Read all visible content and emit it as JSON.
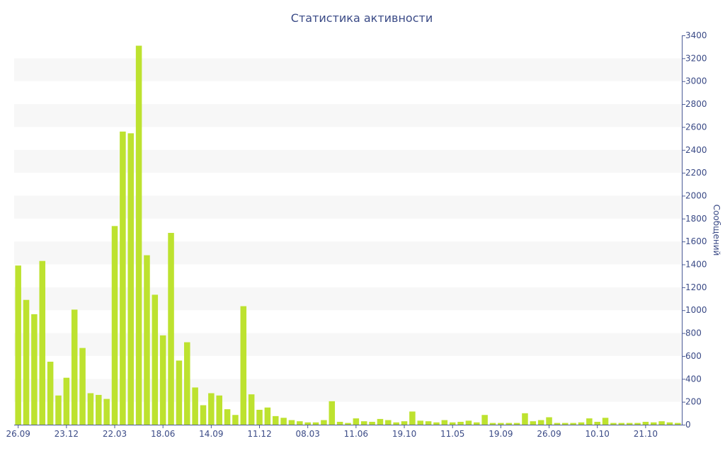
{
  "chart_data": {
    "type": "bar",
    "title": "Статистика активности",
    "ylabel": "Сообщений",
    "xlabel": "",
    "ylim": [
      0,
      3400
    ],
    "yticks": [
      0,
      200,
      400,
      600,
      800,
      1000,
      1200,
      1400,
      1600,
      1800,
      2000,
      2200,
      2400,
      2600,
      2800,
      3000,
      3200,
      3400
    ],
    "y_axis_position": "right",
    "grid": "alternating horizontal bands",
    "color": "#bde22f",
    "x_tick_labels": [
      {
        "index": 0,
        "label": "26.09"
      },
      {
        "index": 6,
        "label": "23.12"
      },
      {
        "index": 12,
        "label": "22.03"
      },
      {
        "index": 18,
        "label": "18.06"
      },
      {
        "index": 24,
        "label": "14.09"
      },
      {
        "index": 30,
        "label": "11.12"
      },
      {
        "index": 36,
        "label": "08.03"
      },
      {
        "index": 42,
        "label": "11.06"
      },
      {
        "index": 48,
        "label": "19.10"
      },
      {
        "index": 54,
        "label": "11.05"
      },
      {
        "index": 60,
        "label": "19.09"
      },
      {
        "index": 66,
        "label": "26.09"
      },
      {
        "index": 72,
        "label": "10.10"
      },
      {
        "index": 78,
        "label": "21.10"
      }
    ],
    "values": [
      1390,
      1090,
      965,
      1430,
      550,
      255,
      410,
      1005,
      670,
      275,
      260,
      225,
      1735,
      2560,
      2545,
      3310,
      1480,
      1135,
      780,
      1675,
      560,
      720,
      325,
      170,
      275,
      255,
      135,
      85,
      1035,
      265,
      130,
      150,
      75,
      60,
      40,
      30,
      20,
      20,
      40,
      205,
      25,
      15,
      55,
      30,
      25,
      50,
      40,
      20,
      30,
      115,
      35,
      30,
      20,
      40,
      20,
      25,
      35,
      20,
      85,
      15,
      15,
      15,
      15,
      100,
      30,
      40,
      65,
      15,
      15,
      15,
      20,
      55,
      25,
      60,
      15,
      15,
      15,
      15,
      25,
      20,
      30,
      20,
      15
    ]
  }
}
